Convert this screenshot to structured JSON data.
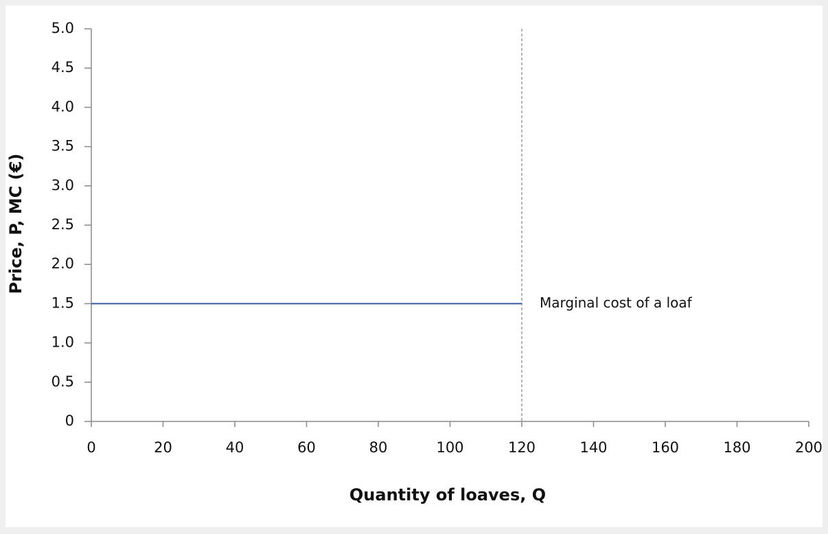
{
  "chart_data": {
    "type": "line",
    "x_label": "Quantity of loaves, Q",
    "y_label": "Price, P, MC (€)",
    "x": [
      0,
      120
    ],
    "series": [
      {
        "name": "Marginal cost of a loaf",
        "color": "#3a5a9c",
        "values": [
          1.5,
          1.5
        ]
      }
    ],
    "reference_lines": [
      {
        "x": 120,
        "color": "#9a9a9a",
        "dashed": true
      }
    ],
    "xlim": [
      0,
      200
    ],
    "xticks": [
      0,
      20,
      40,
      60,
      80,
      100,
      120,
      140,
      160,
      180,
      200
    ],
    "ylim": [
      0,
      5
    ],
    "yticks": [
      0,
      {
        "value": 0.5,
        "label": "0.5"
      },
      {
        "value": 1,
        "label": "1.0"
      },
      {
        "value": 1.5,
        "label": "1.5"
      },
      {
        "value": 2,
        "label": "2.0"
      },
      {
        "value": 2.5,
        "label": "2.5"
      },
      {
        "value": 3,
        "label": "3.0"
      },
      {
        "value": 3.5,
        "label": "3.5"
      },
      {
        "value": 4,
        "label": "4.0"
      },
      {
        "value": 4.5,
        "label": "4.5"
      },
      {
        "value": 5,
        "label": "5.0"
      }
    ],
    "grid": false
  }
}
